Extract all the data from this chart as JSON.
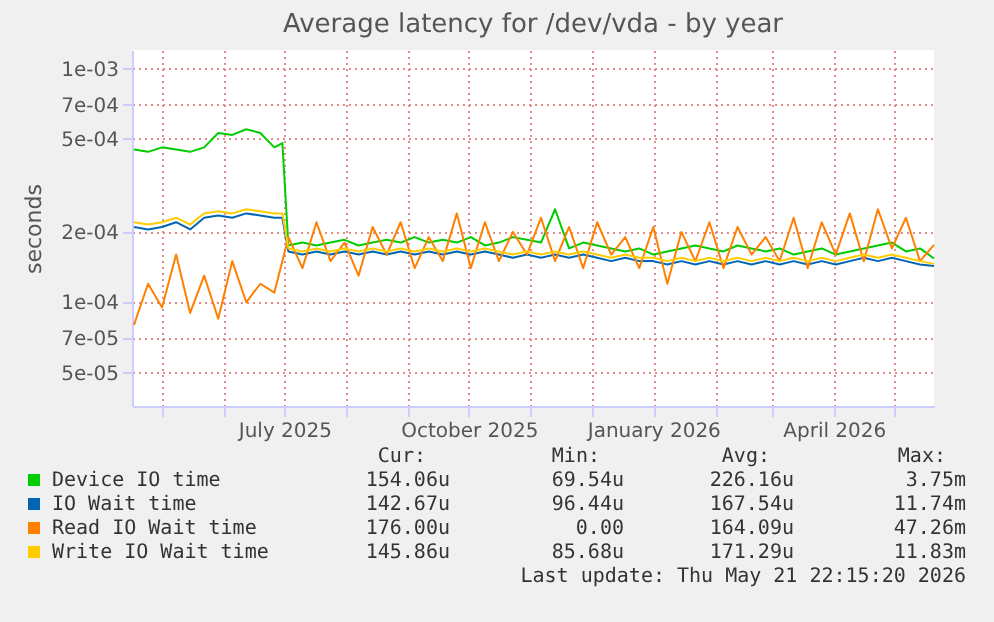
{
  "chart_data": {
    "type": "line",
    "title": "Average latency for /dev/vda - by year",
    "ylabel": "seconds",
    "x": [
      "2025-04-17",
      "2025-04-24",
      "2025-05-01",
      "2025-05-08",
      "2025-05-15",
      "2025-05-22",
      "2025-05-29",
      "2025-06-05",
      "2025-06-12",
      "2025-06-19",
      "2025-06-26",
      "2025-06-30",
      "2025-07-03",
      "2025-07-10",
      "2025-07-17",
      "2025-07-24",
      "2025-07-31",
      "2025-08-07",
      "2025-08-14",
      "2025-08-21",
      "2025-08-28",
      "2025-09-04",
      "2025-09-11",
      "2025-09-18",
      "2025-09-25",
      "2025-10-02",
      "2025-10-09",
      "2025-10-16",
      "2025-10-23",
      "2025-10-30",
      "2025-11-06",
      "2025-11-13",
      "2025-11-20",
      "2025-11-27",
      "2025-12-04",
      "2025-12-11",
      "2025-12-18",
      "2025-12-25",
      "2026-01-01",
      "2026-01-08",
      "2026-01-15",
      "2026-01-22",
      "2026-01-29",
      "2026-02-05",
      "2026-02-12",
      "2026-02-19",
      "2026-02-26",
      "2026-03-05",
      "2026-03-12",
      "2026-03-19",
      "2026-03-26",
      "2026-04-02",
      "2026-04-09",
      "2026-04-16",
      "2026-04-23",
      "2026-04-30",
      "2026-05-07",
      "2026-05-14",
      "2026-05-21"
    ],
    "series": [
      {
        "name": "Device IO time",
        "color": "#00cc00",
        "values": [
          0.00045,
          0.00044,
          0.00046,
          0.00045,
          0.00044,
          0.00046,
          0.00053,
          0.00052,
          0.00055,
          0.00053,
          0.00046,
          0.00048,
          0.000175,
          0.00018,
          0.000175,
          0.00018,
          0.000185,
          0.000175,
          0.00018,
          0.000185,
          0.00018,
          0.00019,
          0.00018,
          0.000185,
          0.00018,
          0.00019,
          0.000175,
          0.00018,
          0.00019,
          0.000185,
          0.00018,
          0.00025,
          0.00017,
          0.00018,
          0.000175,
          0.00017,
          0.000165,
          0.00017,
          0.00016,
          0.000165,
          0.00017,
          0.000175,
          0.00017,
          0.000165,
          0.000175,
          0.00017,
          0.000165,
          0.00017,
          0.00016,
          0.000165,
          0.00017,
          0.00016,
          0.000165,
          0.00017,
          0.000175,
          0.00018,
          0.000165,
          0.00017,
          0.000154
        ]
      },
      {
        "name": "IO Wait time",
        "color": "#0066b3",
        "values": [
          0.00021,
          0.000205,
          0.00021,
          0.00022,
          0.000205,
          0.00023,
          0.000235,
          0.00023,
          0.00024,
          0.000235,
          0.00023,
          0.00023,
          0.000165,
          0.00016,
          0.000165,
          0.00016,
          0.000165,
          0.00016,
          0.000165,
          0.00016,
          0.000165,
          0.00016,
          0.000165,
          0.00016,
          0.000165,
          0.00016,
          0.000165,
          0.00016,
          0.000155,
          0.00016,
          0.000155,
          0.00016,
          0.000155,
          0.00016,
          0.000155,
          0.00015,
          0.000155,
          0.00015,
          0.00015,
          0.000145,
          0.00015,
          0.000145,
          0.00015,
          0.000145,
          0.00015,
          0.000145,
          0.00015,
          0.000145,
          0.00015,
          0.000145,
          0.00015,
          0.000145,
          0.00015,
          0.000155,
          0.00015,
          0.000155,
          0.00015,
          0.000145,
          0.000143
        ]
      },
      {
        "name": "Read IO Wait time",
        "color": "#ff8000",
        "values": [
          8e-05,
          0.00012,
          9.5e-05,
          0.00016,
          9e-05,
          0.00013,
          8.5e-05,
          0.00015,
          0.0001,
          0.00012,
          0.00011,
          0.00015,
          0.00019,
          0.00014,
          0.00022,
          0.00015,
          0.00018,
          0.00013,
          0.00021,
          0.00016,
          0.00022,
          0.00014,
          0.00019,
          0.00015,
          0.00024,
          0.00014,
          0.00022,
          0.00015,
          0.0002,
          0.00016,
          0.00023,
          0.00015,
          0.00021,
          0.00014,
          0.00022,
          0.00016,
          0.00019,
          0.00014,
          0.00021,
          0.00012,
          0.0002,
          0.00015,
          0.00022,
          0.00014,
          0.00021,
          0.00016,
          0.00019,
          0.00015,
          0.00023,
          0.00014,
          0.00022,
          0.00016,
          0.00024,
          0.00015,
          0.00025,
          0.00017,
          0.00023,
          0.00015,
          0.000176
        ]
      },
      {
        "name": "Write IO Wait time",
        "color": "#ffcc00",
        "values": [
          0.00022,
          0.000215,
          0.00022,
          0.00023,
          0.000215,
          0.00024,
          0.000245,
          0.00024,
          0.00025,
          0.000245,
          0.00024,
          0.00024,
          0.00017,
          0.000165,
          0.00017,
          0.000165,
          0.00017,
          0.000165,
          0.00017,
          0.000165,
          0.00017,
          0.000165,
          0.00017,
          0.000165,
          0.00017,
          0.000165,
          0.00017,
          0.000165,
          0.00016,
          0.000165,
          0.00016,
          0.000165,
          0.00016,
          0.000165,
          0.00016,
          0.000155,
          0.00016,
          0.000155,
          0.000155,
          0.00015,
          0.000155,
          0.00015,
          0.000155,
          0.00015,
          0.000155,
          0.00015,
          0.000155,
          0.00015,
          0.000155,
          0.00015,
          0.000155,
          0.00015,
          0.000155,
          0.00016,
          0.000155,
          0.00016,
          0.000155,
          0.00015,
          0.000146
        ]
      }
    ],
    "xlim": [
      "2025-04-16",
      "2026-05-21"
    ],
    "xticks": [
      {
        "value": "2025-05-01",
        "label": null
      },
      {
        "value": "2025-06-01",
        "label": null
      },
      {
        "value": "2025-07-01",
        "label": "July 2025"
      },
      {
        "value": "2025-08-01",
        "label": null
      },
      {
        "value": "2025-09-01",
        "label": null
      },
      {
        "value": "2025-10-01",
        "label": "October 2025"
      },
      {
        "value": "2025-11-01",
        "label": null
      },
      {
        "value": "2025-12-01",
        "label": null
      },
      {
        "value": "2026-01-01",
        "label": "January 2026"
      },
      {
        "value": "2026-02-01",
        "label": null
      },
      {
        "value": "2026-03-01",
        "label": null
      },
      {
        "value": "2026-04-01",
        "label": "April 2026"
      },
      {
        "value": "2026-05-01",
        "label": null
      }
    ],
    "log": true,
    "ylim": [
      3.6e-05,
      0.0012
    ],
    "yticks": [
      {
        "value": 5e-05,
        "label": "5e-05"
      },
      {
        "value": 7e-05,
        "label": "7e-05"
      },
      {
        "value": 0.0001,
        "label": "1e-04"
      },
      {
        "value": 0.0002,
        "label": "2e-04"
      },
      {
        "value": 0.0005,
        "label": "5e-04"
      },
      {
        "value": 0.0007,
        "label": "7e-04"
      },
      {
        "value": 0.001,
        "label": "1e-03"
      }
    ],
    "grid": true,
    "legend": "bottom",
    "line_style": "solid",
    "marker": "none",
    "annotations": [
      "Cur:",
      "Min:",
      "Avg:",
      "Max:",
      "154.06u",
      "69.54u",
      "226.16u",
      "3.75m",
      "142.67u",
      "96.44u",
      "167.54u",
      "11.74m",
      "176.00u",
      "0.00",
      "164.09u",
      "47.26m",
      "145.86u",
      "85.68u",
      "171.29u",
      "11.83m",
      "Last update: Thu May 21 22:15:20 2026"
    ]
  }
}
